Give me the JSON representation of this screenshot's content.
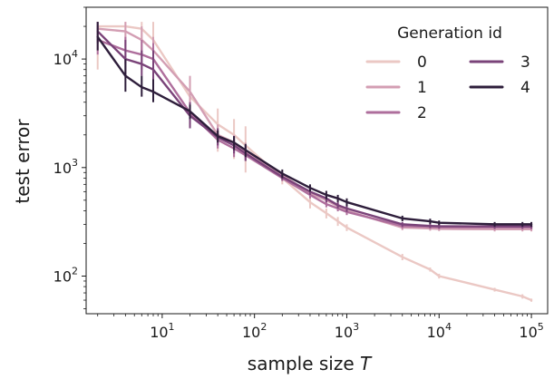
{
  "chart_data": {
    "type": "line",
    "title": "",
    "xlabel": "sample size",
    "xlabel_var": "T",
    "ylabel": "test error",
    "xscale": "log",
    "yscale": "log",
    "xlim": [
      1.5,
      150000
    ],
    "ylim": [
      45,
      30000
    ],
    "x_tick_values": [
      10,
      100,
      1000,
      10000,
      100000
    ],
    "x_tick_labels": [
      {
        "base": "10",
        "exp": "1"
      },
      {
        "base": "10",
        "exp": "2"
      },
      {
        "base": "10",
        "exp": "3"
      },
      {
        "base": "10",
        "exp": "4"
      },
      {
        "base": "10",
        "exp": "5"
      }
    ],
    "y_tick_values": [
      100,
      1000,
      10000
    ],
    "y_tick_labels": [
      {
        "base": "10",
        "exp": "2"
      },
      {
        "base": "10",
        "exp": "3"
      },
      {
        "base": "10",
        "exp": "4"
      }
    ],
    "grid": false,
    "legend": {
      "title": "Generation id",
      "placement": "top-right",
      "columns": 2
    },
    "x": [
      2,
      4,
      6,
      8,
      20,
      40,
      60,
      80,
      200,
      400,
      600,
      800,
      1000,
      4000,
      8000,
      10000,
      40000,
      80000,
      100000
    ],
    "series": [
      {
        "name": "0",
        "color": "#ebc8c4",
        "values": [
          20000,
          20000,
          19000,
          15000,
          4500,
          2500,
          2000,
          1600,
          800,
          480,
          380,
          320,
          280,
          150,
          115,
          100,
          75,
          65,
          60
        ],
        "err_low": [
          8000,
          15000,
          12000,
          9000,
          2500,
          1400,
          1200,
          900,
          700,
          420,
          340,
          290,
          260,
          140,
          110,
          95,
          72,
          62,
          58
        ],
        "err_high": [
          22000,
          22000,
          22000,
          22000,
          6500,
          3500,
          2800,
          2400,
          900,
          540,
          420,
          350,
          300,
          160,
          120,
          105,
          78,
          68,
          62
        ]
      },
      {
        "name": "1",
        "color": "#d39eb3",
        "values": [
          19000,
          18000,
          15000,
          12000,
          5000,
          2000,
          1700,
          1400,
          850,
          580,
          500,
          440,
          400,
          280,
          275,
          272,
          270,
          270,
          270
        ],
        "err_low": [
          14000,
          13000,
          11000,
          9000,
          3500,
          1600,
          1400,
          1200,
          800,
          540,
          460,
          410,
          370,
          265,
          262,
          260,
          258,
          258,
          258
        ],
        "err_high": [
          22000,
          22000,
          20000,
          16000,
          7000,
          2500,
          2000,
          1700,
          900,
          620,
          540,
          470,
          430,
          295,
          290,
          285,
          282,
          282,
          282
        ]
      },
      {
        "name": "2",
        "color": "#ae6e9c",
        "values": [
          15000,
          12000,
          11000,
          10000,
          3200,
          1800,
          1500,
          1300,
          800,
          560,
          460,
          420,
          390,
          290,
          285,
          283,
          282,
          282,
          282
        ],
        "err_low": [
          11000,
          9000,
          8000,
          7000,
          2500,
          1500,
          1250,
          1150,
          750,
          520,
          430,
          395,
          365,
          275,
          272,
          270,
          268,
          268,
          268
        ],
        "err_high": [
          20000,
          16000,
          15000,
          14000,
          4000,
          2100,
          1800,
          1500,
          860,
          600,
          500,
          450,
          415,
          305,
          300,
          297,
          296,
          296,
          296
        ]
      },
      {
        "name": "3",
        "color": "#7a4379",
        "values": [
          18000,
          10000,
          9000,
          8000,
          3000,
          1900,
          1600,
          1350,
          820,
          600,
          520,
          450,
          420,
          300,
          290,
          288,
          287,
          287,
          287
        ],
        "err_low": [
          14000,
          7000,
          7000,
          6000,
          2300,
          1600,
          1350,
          1150,
          770,
          560,
          480,
          420,
          390,
          285,
          278,
          276,
          275,
          275,
          275
        ],
        "err_high": [
          22000,
          15000,
          12000,
          12000,
          4000,
          2300,
          1900,
          1600,
          880,
          650,
          560,
          480,
          450,
          315,
          302,
          300,
          299,
          299,
          299
        ]
      },
      {
        "name": "4",
        "color": "#2e1e3b",
        "values": [
          16000,
          7000,
          5500,
          5000,
          3300,
          1950,
          1700,
          1450,
          880,
          650,
          560,
          520,
          480,
          340,
          320,
          310,
          300,
          300,
          300
        ],
        "err_low": [
          12000,
          5000,
          4500,
          4000,
          2800,
          1700,
          1450,
          1250,
          800,
          600,
          510,
          480,
          440,
          320,
          302,
          295,
          285,
          285,
          285
        ],
        "err_high": [
          22000,
          10000,
          7000,
          6500,
          3800,
          2200,
          1950,
          1650,
          960,
          700,
          610,
          560,
          520,
          360,
          338,
          325,
          315,
          315,
          315
        ]
      }
    ]
  }
}
